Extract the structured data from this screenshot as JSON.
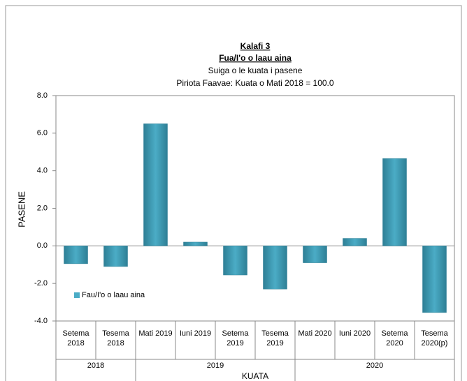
{
  "chart_data": {
    "type": "bar",
    "title": "Kalafi 3",
    "subtitles": [
      "Fua/I'o o laau aina",
      "Suiga o le kuata i pasene",
      "Piriota Faavae: Kuata o Mati 2018 = 100.0"
    ],
    "categories": [
      "Setema 2018",
      "Tesema 2018",
      "Mati 2019",
      "Iuni 2019",
      "Setema 2019",
      "Tesema 2019",
      "Mati 2020",
      "Iuni 2020",
      "Setema 2020",
      "Tesema 2020(p)"
    ],
    "groups": [
      "2018",
      "2019",
      "2020"
    ],
    "series": [
      {
        "name": "Fau/I'o o laau aina",
        "color": "#4bacc6",
        "values": [
          -0.95,
          -1.1,
          6.5,
          0.2,
          -1.55,
          -2.3,
          -0.9,
          0.4,
          4.65,
          -3.55
        ]
      }
    ],
    "xlabel": "KUATA",
    "ylabel": "PASENE",
    "ylim": [
      -4,
      8
    ],
    "yticks": [
      {
        "value": -4,
        "label": "-4.0"
      },
      {
        "value": -2,
        "label": "-2.0"
      },
      {
        "value": 0,
        "label": "0.0"
      },
      {
        "value": 2,
        "label": "2.0"
      },
      {
        "value": 4,
        "label": "4.0"
      },
      {
        "value": 6,
        "label": "6.0"
      },
      {
        "value": 8,
        "label": "8.0"
      }
    ],
    "legend": "lower left",
    "grid": false
  }
}
